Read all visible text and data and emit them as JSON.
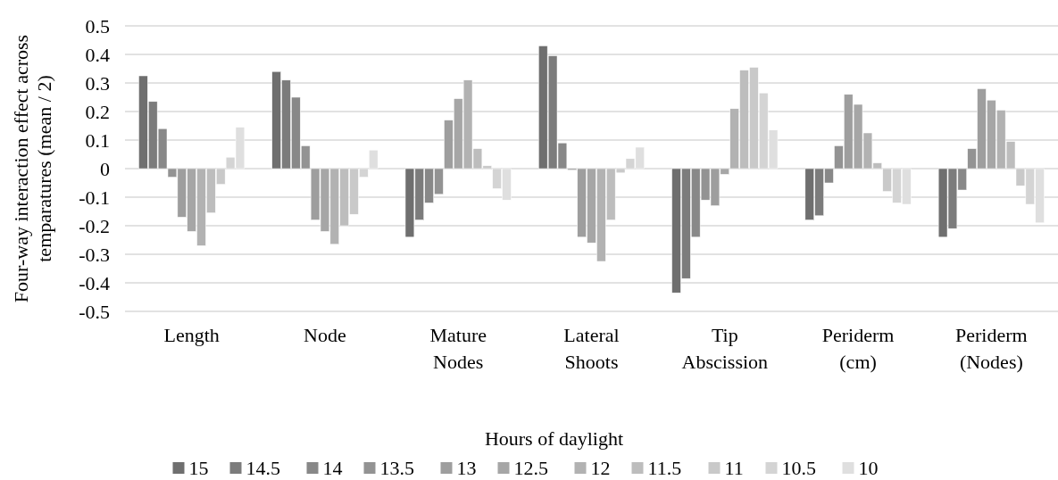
{
  "chart_data": {
    "type": "bar",
    "ylabel": "Four-way interaction effect across temparatures (mean / 2)",
    "legend_title": "Hours of daylight",
    "categories": [
      "Length",
      "Node",
      "Mature Nodes",
      "Lateral Shoots",
      "Tip Abscission",
      "Periderm (cm)",
      "Periderm (Nodes)"
    ],
    "series": [
      {
        "name": "15",
        "color": "#6f6f6f",
        "values": [
          0.325,
          0.34,
          -0.24,
          0.43,
          -0.435,
          -0.18,
          -0.24
        ]
      },
      {
        "name": "14.5",
        "color": "#7c7c7c",
        "values": [
          0.235,
          0.31,
          -0.18,
          0.395,
          -0.385,
          -0.165,
          -0.21
        ]
      },
      {
        "name": "14",
        "color": "#888888",
        "values": [
          0.14,
          0.25,
          -0.12,
          0.09,
          -0.24,
          -0.05,
          -0.075
        ]
      },
      {
        "name": "13.5",
        "color": "#939393",
        "values": [
          -0.03,
          0.08,
          -0.09,
          -0.005,
          -0.11,
          0.08,
          0.07
        ]
      },
      {
        "name": "13",
        "color": "#9e9e9e",
        "values": [
          -0.17,
          -0.18,
          0.17,
          -0.24,
          -0.13,
          0.26,
          0.28
        ]
      },
      {
        "name": "12.5",
        "color": "#a6a6a6",
        "values": [
          -0.22,
          -0.22,
          0.245,
          -0.26,
          -0.02,
          0.225,
          0.24
        ]
      },
      {
        "name": "12",
        "color": "#b2b2b2",
        "values": [
          -0.27,
          -0.265,
          0.31,
          -0.325,
          0.21,
          0.125,
          0.205
        ]
      },
      {
        "name": "11.5",
        "color": "#bdbdbd",
        "values": [
          -0.155,
          -0.2,
          0.07,
          -0.18,
          0.345,
          0.02,
          0.095
        ]
      },
      {
        "name": "11",
        "color": "#c9c9c9",
        "values": [
          -0.055,
          -0.16,
          0.01,
          -0.015,
          0.355,
          -0.08,
          -0.06
        ]
      },
      {
        "name": "10.5",
        "color": "#d4d4d4",
        "values": [
          0.04,
          -0.03,
          -0.07,
          0.035,
          0.265,
          -0.12,
          -0.125
        ]
      },
      {
        "name": "10",
        "color": "#dfdfdf",
        "values": [
          0.145,
          0.065,
          -0.11,
          0.075,
          0.135,
          -0.125,
          -0.19
        ]
      }
    ],
    "ylim": [
      -0.5,
      0.5
    ],
    "yticks": [
      -0.5,
      -0.4,
      -0.3,
      -0.2,
      -0.1,
      0,
      0.1,
      0.2,
      0.3,
      0.4,
      0.5
    ],
    "grid": "y",
    "legend": "bottom"
  }
}
